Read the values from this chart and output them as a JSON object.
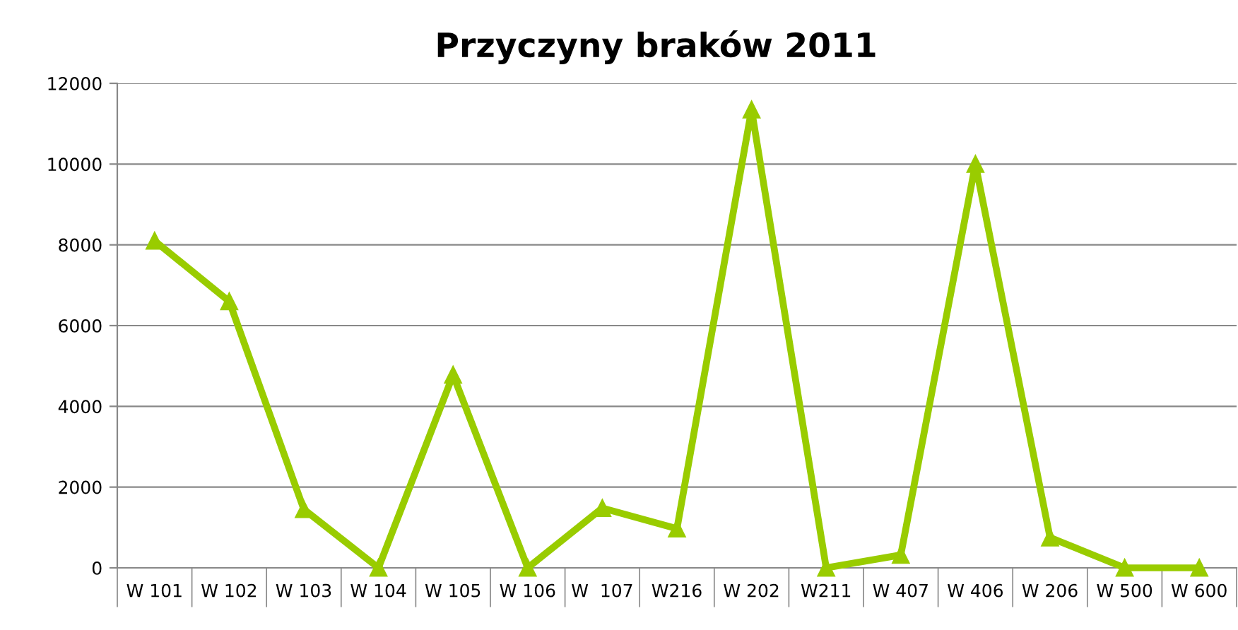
{
  "chart_data": {
    "type": "line",
    "title": "Przyczyny braków 2011",
    "categories": [
      "W 101",
      "W 102",
      "W 103",
      "W 104",
      "W 105",
      "W 106",
      "W  107",
      "W216",
      "W 202",
      "W211",
      "W 407",
      "W 406",
      "W 206",
      "W 500",
      "W 600"
    ],
    "series": [
      {
        "color": "#99cc00",
        "values": [
          8100,
          6600,
          1450,
          0,
          4780,
          0,
          1480,
          970,
          11350,
          0,
          320,
          10000,
          750,
          0,
          0
        ]
      }
    ],
    "ylim": [
      0,
      12000
    ],
    "yticks": [
      0,
      2000,
      4000,
      6000,
      8000,
      10000,
      12000
    ],
    "grid": "y",
    "marker": "triangle",
    "line_style": "solid"
  }
}
